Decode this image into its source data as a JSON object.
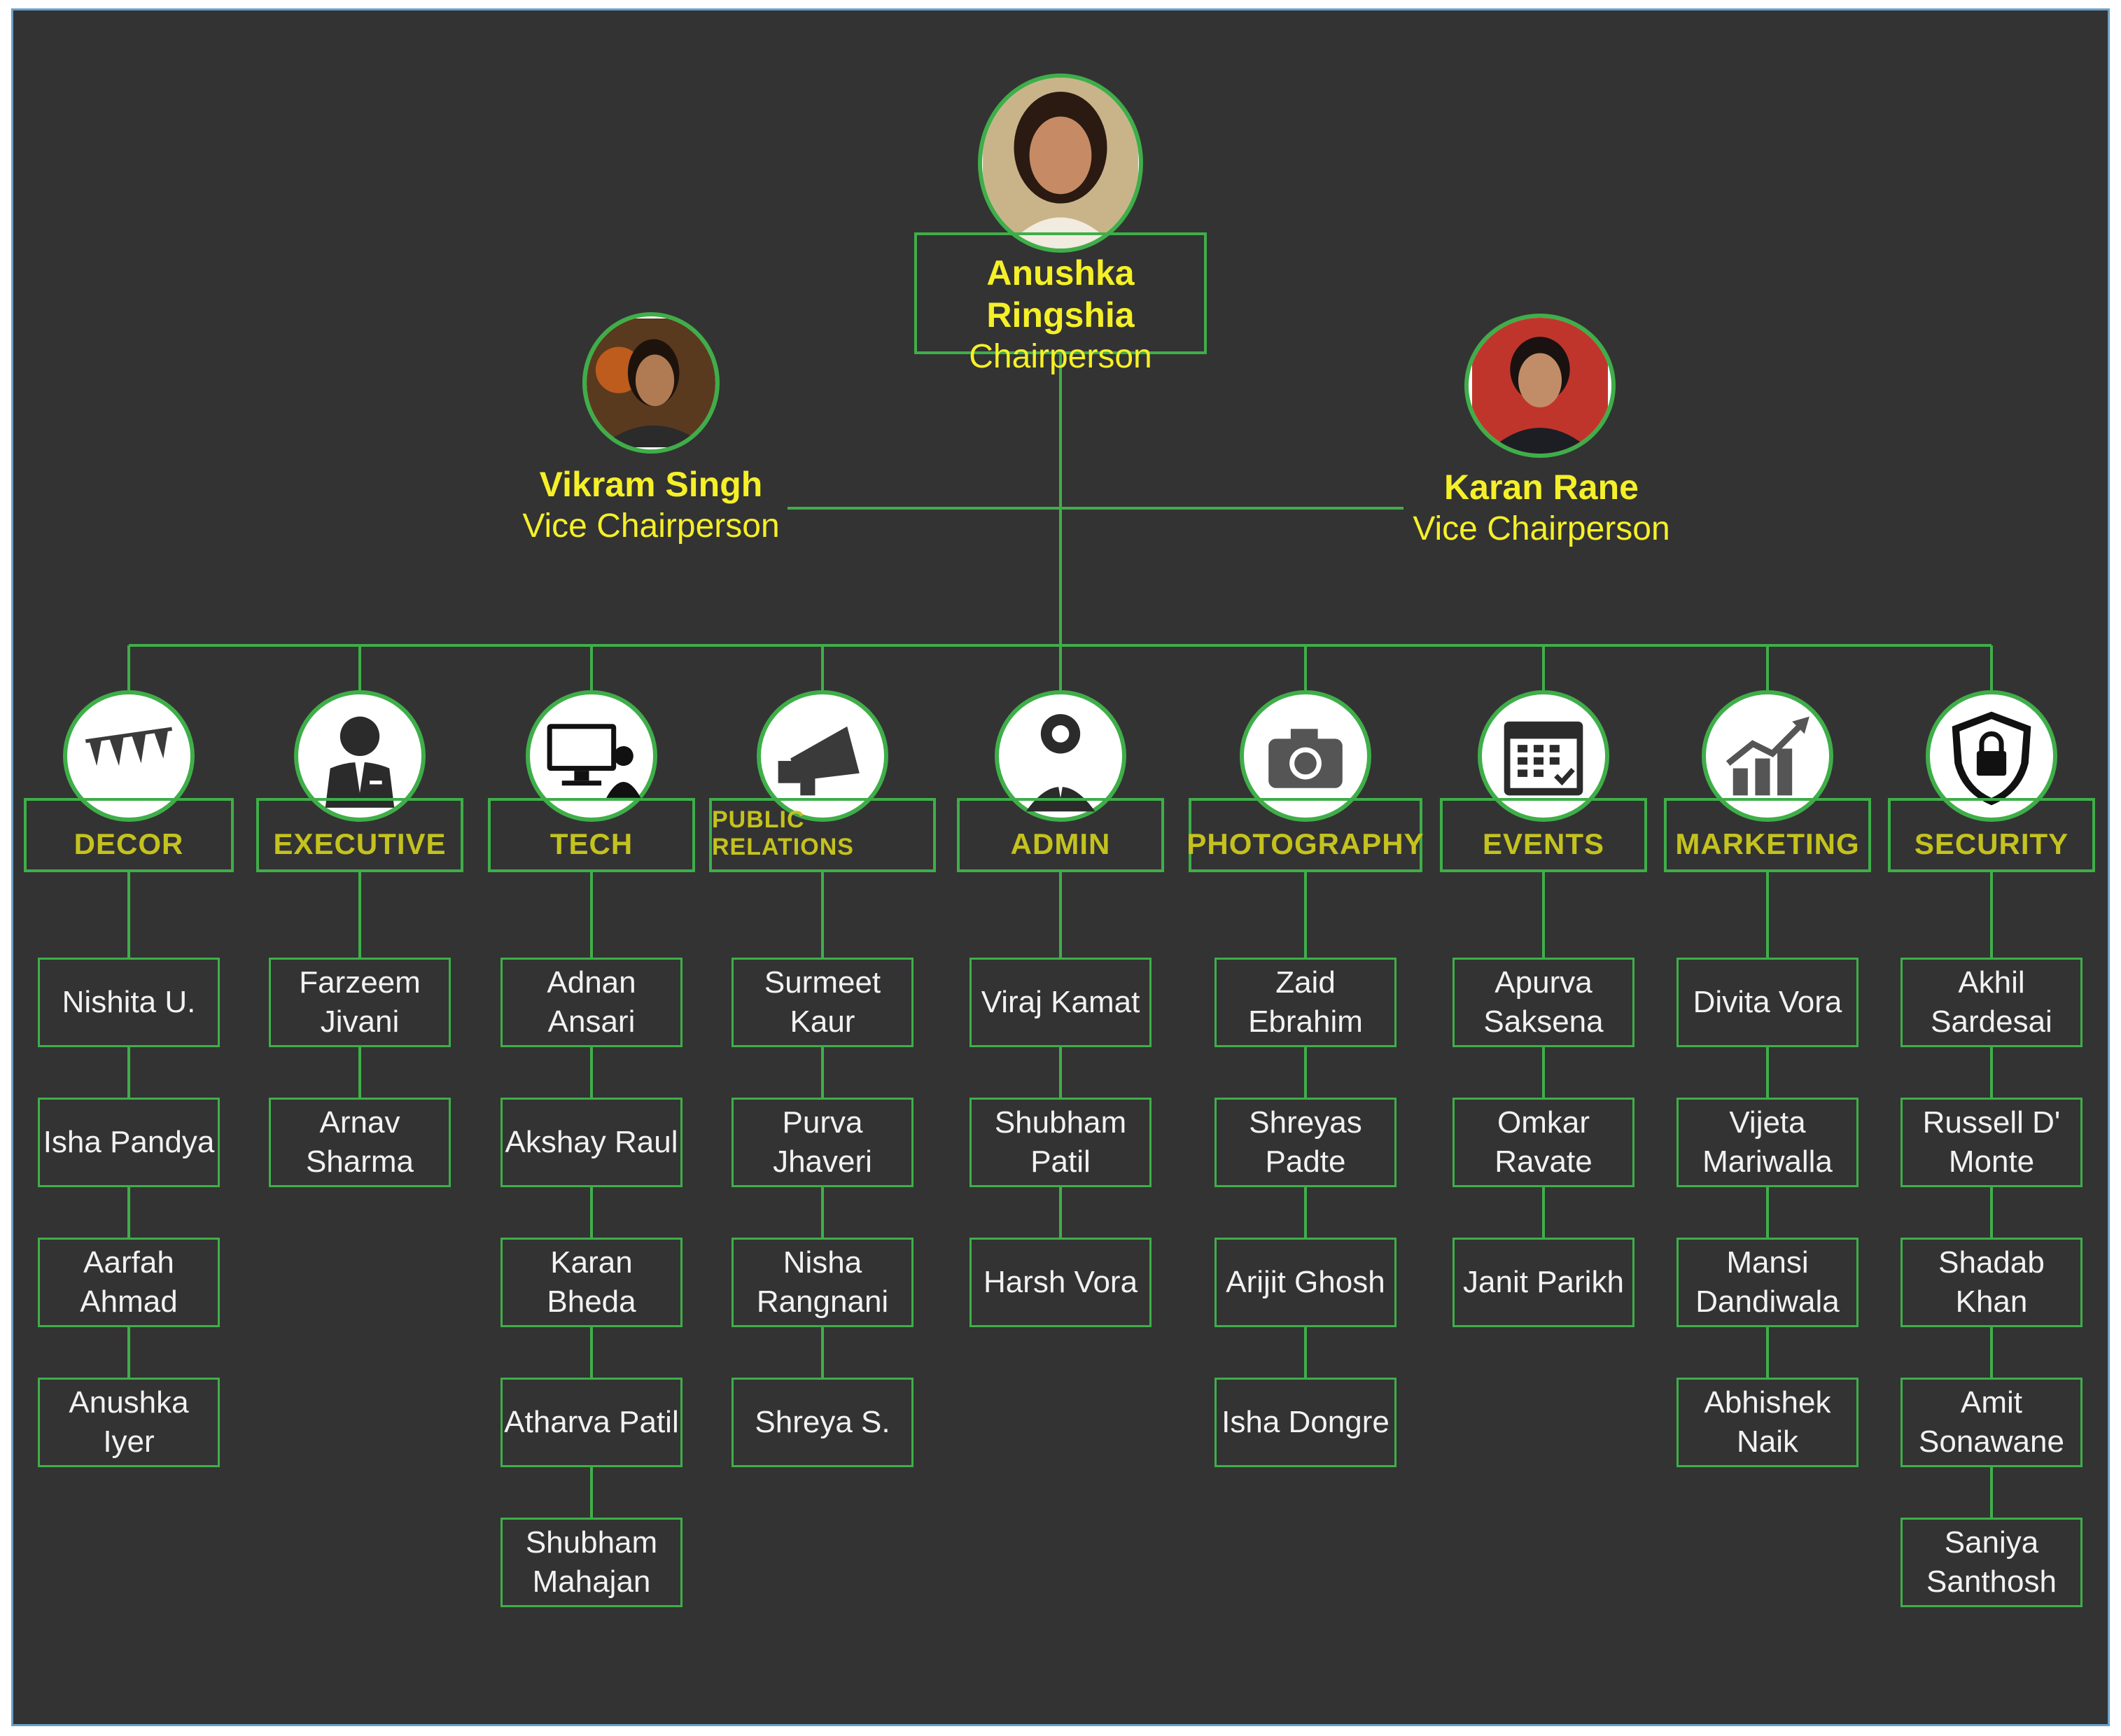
{
  "chair": {
    "name": "Anushka Ringshia",
    "role": "Chairperson"
  },
  "vice_left": {
    "name": "Vikram Singh",
    "role": "Vice Chairperson"
  },
  "vice_right": {
    "name": "Karan Rane",
    "role": "Vice Chairperson"
  },
  "colors": {
    "background": "#333333",
    "line": "#3fae49",
    "title": "#f5f028",
    "dept": "#c4c21e",
    "member_text": "#f2f2f2"
  },
  "departments": [
    {
      "label": "DECOR",
      "icon": "bunting-icon",
      "members": [
        "Nishita U.",
        "Isha Pandya",
        "Aarfah Ahmad",
        "Anushka Iyer"
      ]
    },
    {
      "label": "EXECUTIVE",
      "icon": "businessman-icon",
      "members": [
        "Farzeem Jivani",
        "Arnav Sharma"
      ]
    },
    {
      "label": "TECH",
      "icon": "computer-user-icon",
      "members": [
        "Adnan Ansari",
        "Akshay Raul",
        "Karan Bheda",
        "Atharva Patil",
        "Shubham Mahajan"
      ]
    },
    {
      "label": "PUBLIC RELATIONS",
      "icon": "megaphone-icon",
      "members": [
        "Surmeet Kaur",
        "Purva Jhaveri",
        "Nisha Rangnani",
        "Shreya S."
      ]
    },
    {
      "label": "ADMIN",
      "icon": "admin-gear-icon",
      "members": [
        "Viraj Kamat",
        "Shubham Patil",
        "Harsh Vora"
      ]
    },
    {
      "label": "PHOTOGRAPHY",
      "icon": "camera-icon",
      "members": [
        "Zaid Ebrahim",
        "Shreyas Padte",
        "Arijit Ghosh",
        "Isha Dongre"
      ]
    },
    {
      "label": "EVENTS",
      "icon": "calendar-icon",
      "members": [
        "Apurva Saksena",
        "Omkar Ravate",
        "Janit Parikh"
      ]
    },
    {
      "label": "MARKETING",
      "icon": "growth-chart-icon",
      "members": [
        "Divita Vora",
        "Vijeta Mariwalla",
        "Mansi Dandiwala",
        "Abhishek Naik"
      ]
    },
    {
      "label": "SECURITY",
      "icon": "shield-lock-icon",
      "members": [
        "Akhil Sardesai",
        "Russell D' Monte",
        "Shadab Khan",
        "Amit Sonawane",
        "Saniya Santhosh"
      ]
    }
  ]
}
